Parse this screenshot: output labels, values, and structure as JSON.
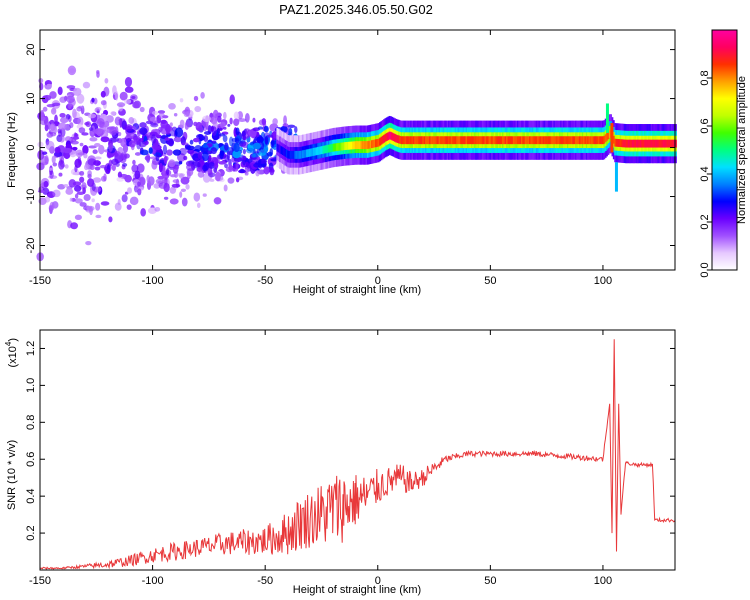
{
  "title": "PAZ1.2025.346.05.50.G02",
  "chart_data": [
    {
      "type": "heatmap",
      "title": "PAZ1.2025.346.05.50.G02",
      "xlabel": "Height of straight line (km)",
      "ylabel": "Frequency (Hz)",
      "xlim": [
        -150,
        132
      ],
      "ylim": [
        -25,
        24
      ],
      "xticks": [
        -150,
        -100,
        -50,
        0,
        50,
        100
      ],
      "yticks": [
        -20,
        -10,
        0,
        10,
        20
      ],
      "colorbar": {
        "label": "Normalized spectral amplitude",
        "range": [
          0,
          1
        ],
        "ticks": [
          "0.0",
          "0.2",
          "0.4",
          "0.6",
          "0.8"
        ],
        "colormap": [
          "#ffffff",
          "#e6c8ff",
          "#a050ff",
          "#6a00ff",
          "#0000ff",
          "#0080ff",
          "#00e0ff",
          "#00ff80",
          "#40ff00",
          "#c0ff00",
          "#ffff00",
          "#ffa000",
          "#ff3000",
          "#ff0060",
          "#ff00a0"
        ]
      },
      "ridge": {
        "x": [
          -45,
          -40,
          -35,
          -30,
          -25,
          -20,
          -15,
          -10,
          -5,
          0,
          3,
          5,
          8,
          10,
          20,
          30,
          40,
          50,
          60,
          70,
          80,
          90,
          95,
          100,
          103,
          105,
          110,
          120,
          132
        ],
        "freq": [
          0,
          -1.5,
          -1.5,
          -1,
          -0.5,
          0,
          0.3,
          0.5,
          0.5,
          1,
          2,
          2.5,
          1.8,
          1.5,
          1.5,
          1.5,
          1.5,
          1.5,
          1.5,
          1.5,
          1.5,
          1.5,
          1.5,
          1.5,
          3,
          1,
          0.8,
          0.8,
          0.8
        ],
        "amplitude": [
          0.25,
          0.3,
          0.35,
          0.4,
          0.45,
          0.55,
          0.65,
          0.75,
          0.8,
          0.85,
          0.9,
          0.95,
          0.9,
          0.85,
          0.85,
          0.85,
          0.85,
          0.85,
          0.85,
          0.85,
          0.85,
          0.85,
          0.85,
          0.85,
          0.8,
          0.85,
          0.9,
          0.9,
          0.9
        ]
      },
      "scatter_region": {
        "x": [
          -150,
          -35
        ],
        "freq_spread": [
          -25,
          24
        ],
        "amplitude_range": [
          0.05,
          0.4
        ]
      }
    },
    {
      "type": "line",
      "xlabel": "Height of straight line (km)",
      "ylabel": "SNR (10 * v/v)",
      "y_multiplier": "(x10",
      "y_multiplier_exp": "4",
      "xlim": [
        -150,
        132
      ],
      "ylim": [
        0,
        1.3
      ],
      "xticks": [
        -150,
        -100,
        -50,
        0,
        50,
        100
      ],
      "yticks": [
        0.2,
        0.4,
        0.6,
        0.8,
        1.0,
        1.2
      ],
      "color": "#e8383a",
      "series": [
        {
          "x": [
            -150,
            -140,
            -130,
            -120,
            -110,
            -100,
            -90,
            -80,
            -70,
            -60,
            -50,
            -45,
            -40,
            -35,
            -30,
            -25,
            -20,
            -15,
            -10,
            -5,
            0,
            5,
            10,
            15,
            20,
            25,
            30,
            40,
            50,
            60,
            70,
            80,
            90,
            100,
            103,
            104,
            105,
            106,
            107,
            108,
            110,
            115,
            122,
            123,
            132
          ],
          "values": [
            0.01,
            0.01,
            0.02,
            0.03,
            0.05,
            0.08,
            0.1,
            0.12,
            0.14,
            0.15,
            0.16,
            0.18,
            0.2,
            0.25,
            0.28,
            0.3,
            0.33,
            0.35,
            0.38,
            0.4,
            0.45,
            0.48,
            0.5,
            0.47,
            0.5,
            0.55,
            0.6,
            0.63,
            0.63,
            0.63,
            0.63,
            0.62,
            0.61,
            0.6,
            0.9,
            0.2,
            1.25,
            0.1,
            0.9,
            0.3,
            0.58,
            0.57,
            0.57,
            0.27,
            0.27
          ],
          "noise": [
            0.005,
            0.005,
            0.01,
            0.02,
            0.03,
            0.04,
            0.05,
            0.05,
            0.06,
            0.07,
            0.08,
            0.1,
            0.12,
            0.15,
            0.16,
            0.18,
            0.2,
            0.2,
            0.15,
            0.12,
            0.1,
            0.08,
            0.08,
            0.06,
            0.05,
            0.04,
            0.02,
            0.015,
            0.015,
            0.015,
            0.015,
            0.015,
            0.015,
            0.015,
            0,
            0,
            0,
            0,
            0,
            0,
            0.01,
            0.01,
            0.01,
            0.01,
            0.01
          ]
        }
      ]
    }
  ]
}
